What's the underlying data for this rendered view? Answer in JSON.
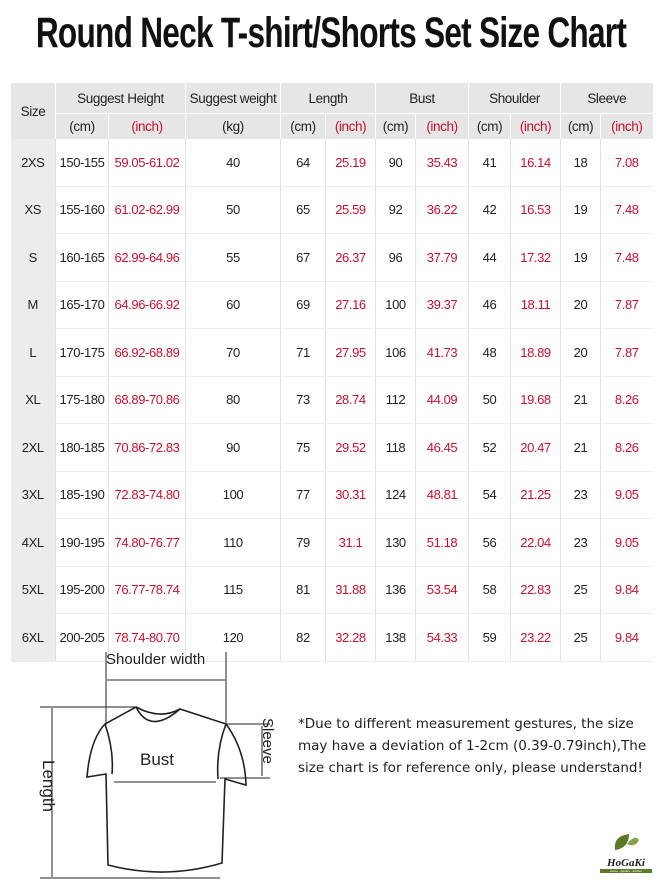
{
  "title": "Round Neck T-shirt/Shorts Set Size Chart",
  "headers": {
    "size": "Size",
    "height": "Suggest Height",
    "weight": "Suggest weight",
    "length": "Length",
    "bust": "Bust",
    "shoulder": "Shoulder",
    "sleeve": "Sleeve"
  },
  "units": [
    "(cm)",
    "(inch)",
    "(kg)",
    "(cm)",
    "(inch)",
    "(cm)",
    "(inch)",
    "(cm)",
    "(inch)",
    "(cm)",
    "(inch)"
  ],
  "unit_red": [
    false,
    true,
    false,
    false,
    true,
    false,
    true,
    false,
    true,
    false,
    true
  ],
  "rows": [
    [
      "2XS",
      "150-155",
      "59.05-61.02",
      "40",
      "64",
      "25.19",
      "90",
      "35.43",
      "41",
      "16.14",
      "18",
      "7.08"
    ],
    [
      "XS",
      "155-160",
      "61.02-62.99",
      "50",
      "65",
      "25.59",
      "92",
      "36.22",
      "42",
      "16.53",
      "19",
      "7.48"
    ],
    [
      "S",
      "160-165",
      "62.99-64.96",
      "55",
      "67",
      "26.37",
      "96",
      "37.79",
      "44",
      "17.32",
      "19",
      "7.48"
    ],
    [
      "M",
      "165-170",
      "64.96-66.92",
      "60",
      "69",
      "27.16",
      "100",
      "39.37",
      "46",
      "18.11",
      "20",
      "7.87"
    ],
    [
      "L",
      "170-175",
      "66.92-68.89",
      "70",
      "71",
      "27.95",
      "106",
      "41.73",
      "48",
      "18.89",
      "20",
      "7.87"
    ],
    [
      "XL",
      "175-180",
      "68.89-70.86",
      "80",
      "73",
      "28.74",
      "112",
      "44.09",
      "50",
      "19.68",
      "21",
      "8.26"
    ],
    [
      "2XL",
      "180-185",
      "70.86-72.83",
      "90",
      "75",
      "29.52",
      "118",
      "46.45",
      "52",
      "20.47",
      "21",
      "8.26"
    ],
    [
      "3XL",
      "185-190",
      "72.83-74.80",
      "100",
      "77",
      "30.31",
      "124",
      "48.81",
      "54",
      "21.25",
      "23",
      "9.05"
    ],
    [
      "4XL",
      "190-195",
      "74.80-76.77",
      "110",
      "79",
      "31.1",
      "130",
      "51.18",
      "56",
      "22.04",
      "23",
      "9.05"
    ],
    [
      "5XL",
      "195-200",
      "76.77-78.74",
      "115",
      "81",
      "31.88",
      "136",
      "53.54",
      "58",
      "22.83",
      "25",
      "9.84"
    ],
    [
      "6XL",
      "200-205",
      "78.74-80.70",
      "120",
      "82",
      "32.28",
      "138",
      "54.33",
      "59",
      "23.22",
      "25",
      "9.84"
    ]
  ],
  "diagram": {
    "shoulder": "Shoulder width",
    "bust": "Bust",
    "sleeve": "Sleeve",
    "length": "Length"
  },
  "note": "*Due to different measurement gestures, the size may have a deviation of 1-2cm (0.39-0.79inch),The size chart is for reference only, please understand!",
  "logo": {
    "name": "HoGaKi",
    "tagline": "Home · garden · kitchen"
  },
  "colors": {
    "red": "#c8102e",
    "header": "#e6e6e6",
    "logo": "#5a7a2a"
  }
}
